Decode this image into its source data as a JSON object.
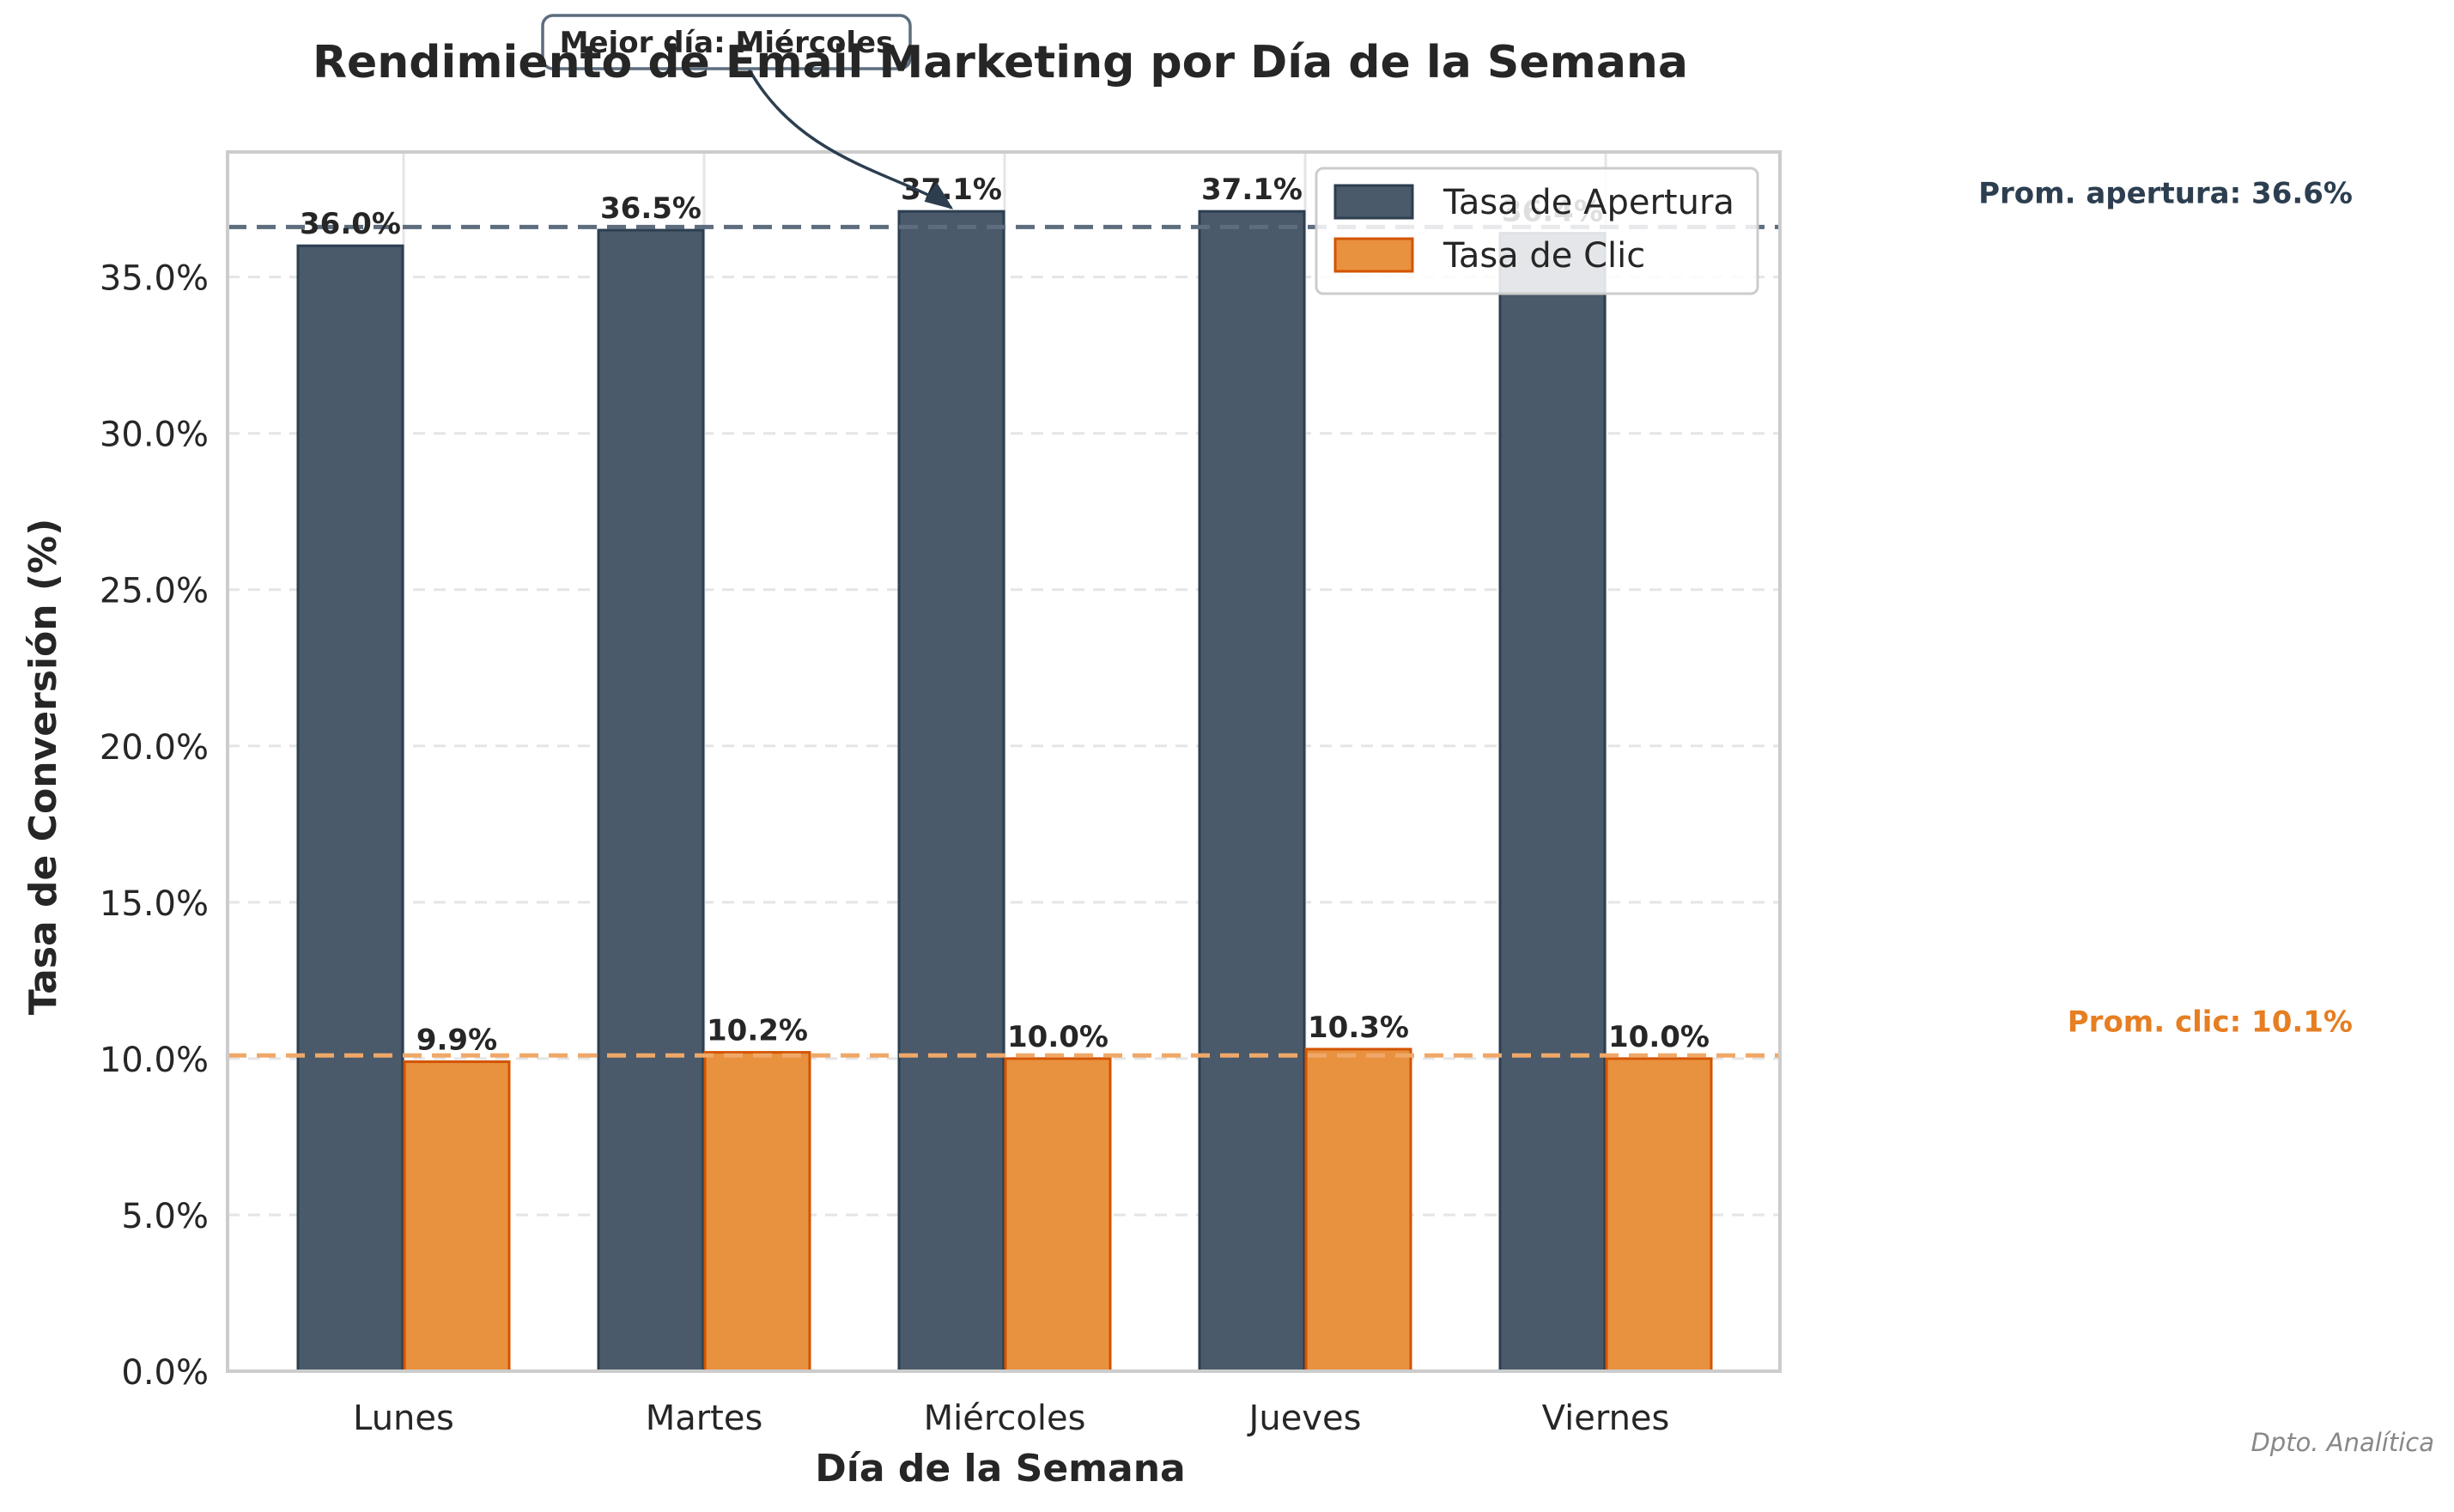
{
  "chart_data": {
    "type": "bar",
    "title": "Rendimiento de Email Marketing por Día de la Semana",
    "xlabel": "Día de la Semana",
    "ylabel": "Tasa de Conversión (%)",
    "categories": [
      "Lunes",
      "Martes",
      "Miércoles",
      "Jueves",
      "Viernes"
    ],
    "series": [
      {
        "name": "Tasa de Apertura",
        "values": [
          36.0,
          36.5,
          37.1,
          37.1,
          36.4
        ],
        "labels": [
          "36.0%",
          "36.5%",
          "37.1%",
          "37.1%",
          "36.4%"
        ],
        "color": "#2c3e50"
      },
      {
        "name": "Tasa de Clic",
        "values": [
          9.9,
          10.2,
          10.0,
          10.3,
          10.0
        ],
        "labels": [
          "9.9%",
          "10.2%",
          "10.0%",
          "10.3%",
          "10.0%"
        ],
        "color": "#e67e22"
      }
    ],
    "ylim": [
      0,
      39
    ],
    "yticks": [
      0,
      5,
      10,
      15,
      20,
      25,
      30,
      35
    ],
    "ytick_labels": [
      "0.0%",
      "5.0%",
      "10.0%",
      "15.0%",
      "20.0%",
      "25.0%",
      "30.0%",
      "35.0%"
    ],
    "grid": true,
    "legend_position": "top-right",
    "reference_lines": [
      {
        "value": 36.6,
        "label": "Prom. apertura: 36.6%",
        "color": "#2c3e50"
      },
      {
        "value": 10.1,
        "label": "Prom. clic: 10.1%",
        "color": "#e67e22"
      }
    ],
    "annotation": {
      "text": "Mejor día: Miércoles",
      "category": "Miércoles"
    },
    "footer": "Dpto. Analítica"
  },
  "colors": {
    "apertura_fill": "#4a5a6a",
    "apertura_edge": "#2c3e50",
    "clic_fill": "#e8913f",
    "clic_edge": "#d35400",
    "avg_apertura_line": "#5d6d7e",
    "avg_clic_line": "#f0a868",
    "avg_apertura_text": "#2c3e50",
    "avg_clic_text": "#e67e22",
    "axis_spine": "#cccccc",
    "grid": "#e5e5e5",
    "text": "#262626",
    "footer_text": "#888888"
  }
}
